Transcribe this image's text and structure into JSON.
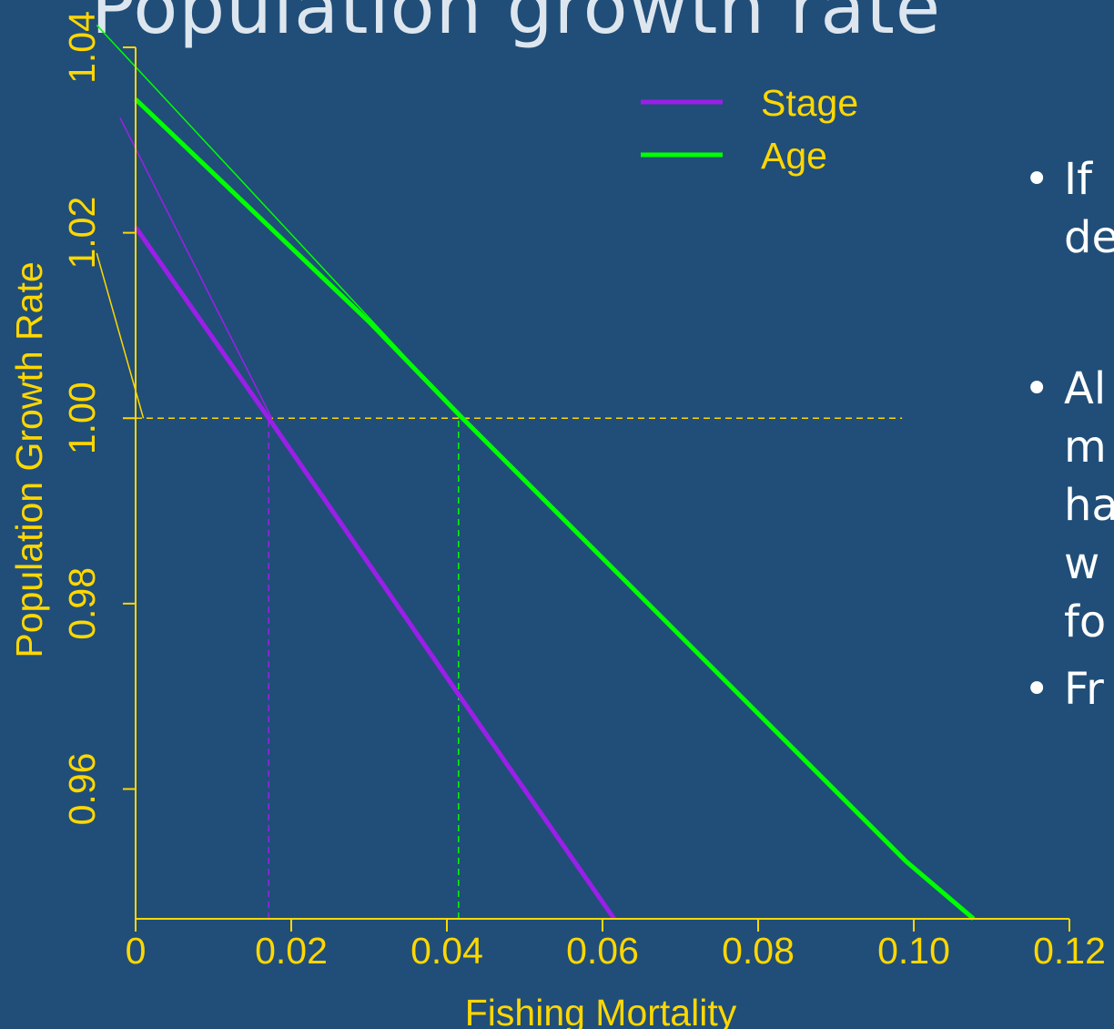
{
  "slide": {
    "title": "Population growth rate",
    "bullets": [
      {
        "lines": [
          "If",
          "de"
        ]
      },
      {
        "lines": [
          "Al",
          "m",
          "ha",
          "w",
          "fo"
        ]
      },
      {
        "lines": [
          "Fr"
        ]
      }
    ],
    "bullet_symbol": "•"
  },
  "colors": {
    "background": "#204e78",
    "axis": "#ffd700",
    "stage": "#9b1fe8",
    "age": "#00ff00",
    "reference": "#ffd700"
  },
  "chart_data": {
    "type": "line",
    "xlabel": "Fishing Mortality",
    "ylabel": "Population Growth Rate",
    "xlim": [
      0,
      0.12
    ],
    "ylim": [
      0.946,
      1.04
    ],
    "x_ticks": [
      {
        "value": 0,
        "label": "0"
      },
      {
        "value": 0.02,
        "label": "0.02"
      },
      {
        "value": 0.04,
        "label": "0.04"
      },
      {
        "value": 0.06,
        "label": "0.06"
      },
      {
        "value": 0.08,
        "label": "0.08"
      },
      {
        "value": 0.1,
        "label": "0.10"
      },
      {
        "value": 0.12,
        "label": "0.12"
      }
    ],
    "y_ticks": [
      {
        "value": 0.96,
        "label": "0.96"
      },
      {
        "value": 0.98,
        "label": "0.98"
      },
      {
        "value": 1.0,
        "label": "1.00"
      },
      {
        "value": 1.02,
        "label": "1.02"
      },
      {
        "value": 1.04,
        "label": "1.04"
      }
    ],
    "legend": {
      "position": "top-right",
      "entries": [
        "Stage",
        "Age"
      ]
    },
    "series": [
      {
        "name": "Stage",
        "color": "#9b1fe8",
        "x": [
          0,
          0.0171,
          0.0415,
          0.0615
        ],
        "y": [
          1.0206,
          1.0,
          0.9702,
          0.946
        ]
      },
      {
        "name": "Age",
        "color": "#00ff00",
        "x": [
          0,
          0.03,
          0.042,
          0.099,
          0.1077
        ],
        "y": [
          1.0344,
          1.0104,
          1.0,
          0.9522,
          0.946
        ]
      }
    ],
    "tangents": [
      {
        "color": "#9b1fe8",
        "x": [
          -0.002,
          0.0175
        ],
        "y": [
          1.0324,
          1.0
        ]
      },
      {
        "color": "#00ff00",
        "x": [
          -0.005,
          0.042
        ],
        "y": [
          1.0424,
          1.0
        ]
      }
    ],
    "reference_lines": [
      {
        "type": "horizontal",
        "y": 1.0,
        "x": [
          0,
          0.0985
        ],
        "color": "#ffd700"
      },
      {
        "type": "vertical",
        "x": 0.0171,
        "y": [
          0.946,
          1.0
        ],
        "color": "#9b1fe8"
      },
      {
        "type": "vertical",
        "x": 0.0415,
        "y": [
          0.946,
          1.0
        ],
        "color": "#00ff00"
      }
    ],
    "annotation_pointer": {
      "color": "#ffd700",
      "from": [
        -0.005,
        1.0178
      ],
      "to": [
        0.001,
        1.0
      ]
    }
  }
}
